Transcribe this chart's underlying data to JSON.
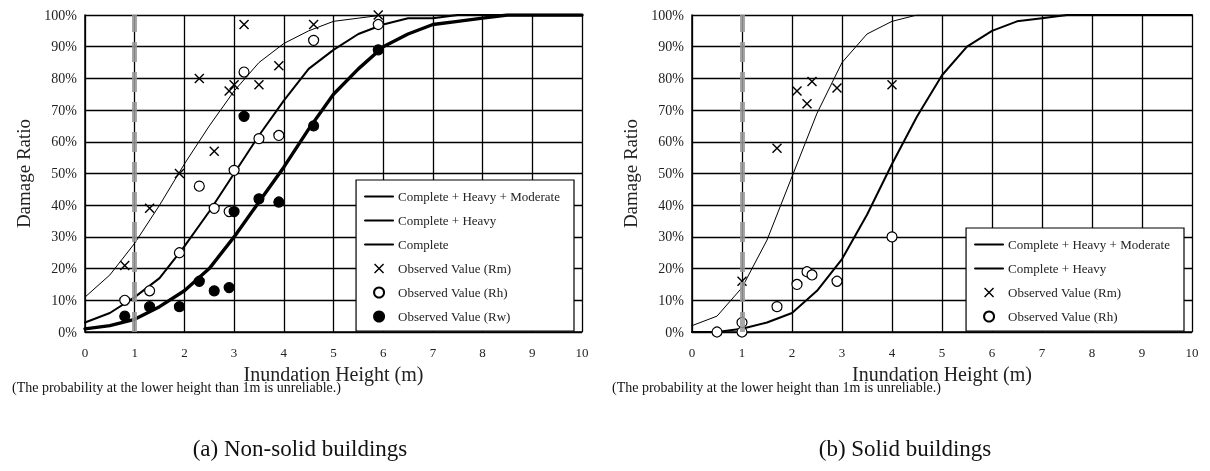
{
  "chart_data": [
    {
      "type": "line",
      "title": "(a) Non-solid buildings",
      "xlabel": "Inundation Height (m)",
      "ylabel": "Damage Ratio",
      "annotations": [
        "(The probability at the lower height than 1m is unreliable.)"
      ],
      "xlim": [
        0,
        10
      ],
      "xticks": [
        0,
        1,
        2,
        3,
        4,
        5,
        6,
        7,
        8,
        9,
        10
      ],
      "ylim": [
        0,
        100
      ],
      "yticks": [
        {
          "value": 0,
          "label": "0%"
        },
        {
          "value": 10,
          "label": "10%"
        },
        {
          "value": 20,
          "label": "20%"
        },
        {
          "value": 30,
          "label": "30%"
        },
        {
          "value": 40,
          "label": "40%"
        },
        {
          "value": 50,
          "label": "50%"
        },
        {
          "value": 60,
          "label": "60%"
        },
        {
          "value": 70,
          "label": "70%"
        },
        {
          "value": 80,
          "label": "80%"
        },
        {
          "value": 90,
          "label": "90%"
        },
        {
          "value": 100,
          "label": "100%"
        }
      ],
      "grid": true,
      "legend": "bottom right",
      "ref_lines": [
        {
          "axis": "x",
          "value": 1,
          "color": "#999999",
          "line_style": "dashed"
        }
      ],
      "series": [
        {
          "name": "Complete + Heavy + Moderate",
          "marker": "none",
          "color": "#000000",
          "x": [
            0,
            0.5,
            1,
            1.5,
            2,
            2.5,
            3,
            3.5,
            4,
            4.5,
            5,
            5.5,
            6,
            6.5,
            7,
            7.5,
            8,
            8.5,
            9,
            9.5,
            10
          ],
          "values": [
            11,
            18,
            28,
            40,
            53,
            65,
            76,
            85,
            91,
            95,
            98,
            99,
            100,
            100,
            100,
            100,
            100,
            100,
            100,
            100,
            100
          ]
        },
        {
          "name": "Complete + Heavy",
          "marker": "none",
          "color": "#000000",
          "x": [
            0,
            0.5,
            1,
            1.5,
            2,
            2.5,
            3,
            3.5,
            4,
            4.5,
            5,
            5.5,
            6,
            6.5,
            7,
            7.5,
            8,
            8.5,
            9,
            9.5,
            10
          ],
          "values": [
            3,
            6,
            11,
            17,
            27,
            38,
            50,
            62,
            73,
            83,
            89,
            94,
            97,
            99,
            99,
            100,
            100,
            100,
            100,
            100,
            100
          ]
        },
        {
          "name": "Complete",
          "marker": "none",
          "color": "#000000",
          "x": [
            0,
            0.5,
            1,
            1.5,
            2,
            2.5,
            3,
            3.5,
            4,
            4.5,
            5,
            5.5,
            6,
            6.5,
            7,
            7.5,
            8,
            8.5,
            9,
            9.5,
            10
          ],
          "values": [
            1,
            2,
            4,
            8,
            13,
            20,
            30,
            41,
            52,
            64,
            75,
            83,
            90,
            94,
            97,
            98,
            99,
            100,
            100,
            100,
            100
          ]
        },
        {
          "name": "Observed Value (Rm)",
          "type": "scatter",
          "marker": "cross",
          "color": "#000000",
          "x": [
            0.8,
            1.3,
            1.9,
            2.3,
            2.6,
            2.9,
            3.0,
            3.2,
            3.5,
            3.9,
            4.6,
            5.9
          ],
          "values": [
            21,
            39,
            50,
            80,
            57,
            76,
            78,
            97,
            78,
            84,
            97,
            100
          ]
        },
        {
          "name": "Observed Value (Rh)",
          "type": "scatter",
          "marker": "circle",
          "color": "#ffffff",
          "x": [
            0.8,
            1.3,
            1.9,
            2.3,
            2.6,
            2.9,
            3.0,
            3.2,
            3.5,
            3.9,
            4.6,
            5.9
          ],
          "values": [
            10,
            13,
            25,
            46,
            39,
            38,
            51,
            82,
            61,
            62,
            92,
            97
          ]
        },
        {
          "name": "Observed Value (Rw)",
          "type": "scatter",
          "marker": "circle",
          "color": "#000000",
          "x": [
            0.8,
            1.3,
            1.9,
            2.3,
            2.6,
            2.9,
            3.0,
            3.2,
            3.5,
            3.9,
            4.6,
            5.9
          ],
          "values": [
            5,
            8,
            8,
            16,
            13,
            14,
            38,
            68,
            42,
            41,
            65,
            89
          ]
        }
      ]
    },
    {
      "type": "line",
      "title": "(b) Solid buildings",
      "xlabel": "Inundation Height (m)",
      "ylabel": "Damage Ratio",
      "annotations": [
        "(The probability at the lower height than 1m is unreliable.)"
      ],
      "xlim": [
        0,
        10
      ],
      "xticks": [
        0,
        1,
        2,
        3,
        4,
        5,
        6,
        7,
        8,
        9,
        10
      ],
      "ylim": [
        0,
        100
      ],
      "yticks": [
        {
          "value": 0,
          "label": "0%"
        },
        {
          "value": 10,
          "label": "10%"
        },
        {
          "value": 20,
          "label": "20%"
        },
        {
          "value": 30,
          "label": "30%"
        },
        {
          "value": 40,
          "label": "40%"
        },
        {
          "value": 50,
          "label": "50%"
        },
        {
          "value": 60,
          "label": "60%"
        },
        {
          "value": 70,
          "label": "70%"
        },
        {
          "value": 80,
          "label": "80%"
        },
        {
          "value": 90,
          "label": "90%"
        },
        {
          "value": 100,
          "label": "100%"
        }
      ],
      "grid": true,
      "legend": "bottom right",
      "ref_lines": [
        {
          "axis": "x",
          "value": 1,
          "color": "#999999",
          "line_style": "dashed"
        }
      ],
      "series": [
        {
          "name": "Complete + Heavy + Moderate",
          "marker": "none",
          "color": "#000000",
          "x": [
            0,
            0.5,
            1,
            1.5,
            2,
            2.5,
            3,
            3.5,
            4,
            4.5,
            5,
            5.5,
            6,
            6.5,
            7,
            7.5,
            8,
            8.5,
            9,
            9.5,
            10
          ],
          "values": [
            2,
            5,
            14,
            29,
            49,
            69,
            85,
            94,
            98,
            100,
            100,
            100,
            100,
            100,
            100,
            100,
            100,
            100,
            100,
            100,
            100
          ]
        },
        {
          "name": "Complete + Heavy",
          "marker": "none",
          "color": "#000000",
          "x": [
            0,
            0.5,
            1,
            1.5,
            2,
            2.5,
            3,
            3.5,
            4,
            4.5,
            5,
            5.5,
            6,
            6.5,
            7,
            7.5,
            8,
            8.5,
            9,
            9.5,
            10
          ],
          "values": [
            0,
            0,
            1,
            3,
            6,
            13,
            23,
            37,
            53,
            68,
            81,
            90,
            95,
            98,
            99,
            100,
            100,
            100,
            100,
            100,
            100
          ]
        },
        {
          "name": "Observed Value (Rm)",
          "type": "scatter",
          "marker": "cross",
          "color": "#000000",
          "x": [
            1.0,
            1.7,
            2.1,
            2.3,
            2.4,
            2.9,
            4.0
          ],
          "values": [
            16,
            58,
            76,
            72,
            79,
            77,
            78
          ]
        },
        {
          "name": "Observed Value (Rh)",
          "type": "scatter",
          "marker": "circle",
          "color": "#ffffff",
          "x": [
            0.5,
            1.0,
            1.0,
            1.7,
            2.1,
            2.3,
            2.4,
            2.9,
            4.0
          ],
          "values": [
            0,
            0,
            3,
            8,
            15,
            19,
            18,
            16,
            30
          ]
        }
      ]
    }
  ]
}
